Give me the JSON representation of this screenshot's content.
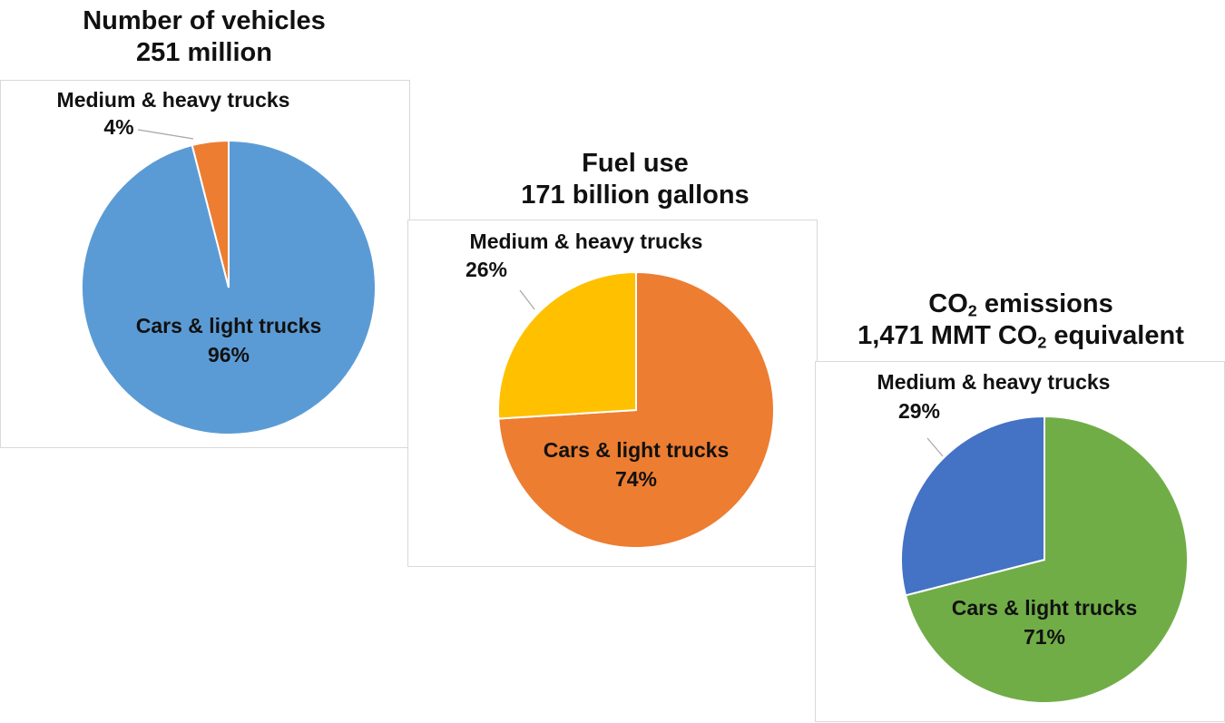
{
  "chart_data": [
    {
      "type": "pie",
      "title": "Number of vehicles",
      "subtitle": "251 million",
      "slices": [
        {
          "label": "Cars & light trucks",
          "value": 96,
          "value_label": "96%",
          "color": "#5b9bd5"
        },
        {
          "label": "Medium & heavy trucks",
          "value": 4,
          "value_label": "4%",
          "color": "#ed7d31"
        }
      ]
    },
    {
      "type": "pie",
      "title": "Fuel use",
      "subtitle": "171 billion gallons",
      "slices": [
        {
          "label": "Cars & light trucks",
          "value": 74,
          "value_label": "74%",
          "color": "#ed7d31"
        },
        {
          "label": "Medium & heavy trucks",
          "value": 26,
          "value_label": "26%",
          "color": "#ffc000"
        }
      ]
    },
    {
      "type": "pie",
      "title": "CO2 emissions",
      "title_parts": [
        "CO",
        "2",
        " emissions"
      ],
      "subtitle": "1,471 MMT CO2 equivalent",
      "subtitle_parts": [
        "1,471 MMT CO",
        "2",
        " equivalent"
      ],
      "slices": [
        {
          "label": "Cars & light trucks",
          "value": 71,
          "value_label": "71%",
          "color": "#70ad47"
        },
        {
          "label": "Medium & heavy trucks",
          "value": 29,
          "value_label": "29%",
          "color": "#4472c4"
        }
      ]
    }
  ]
}
